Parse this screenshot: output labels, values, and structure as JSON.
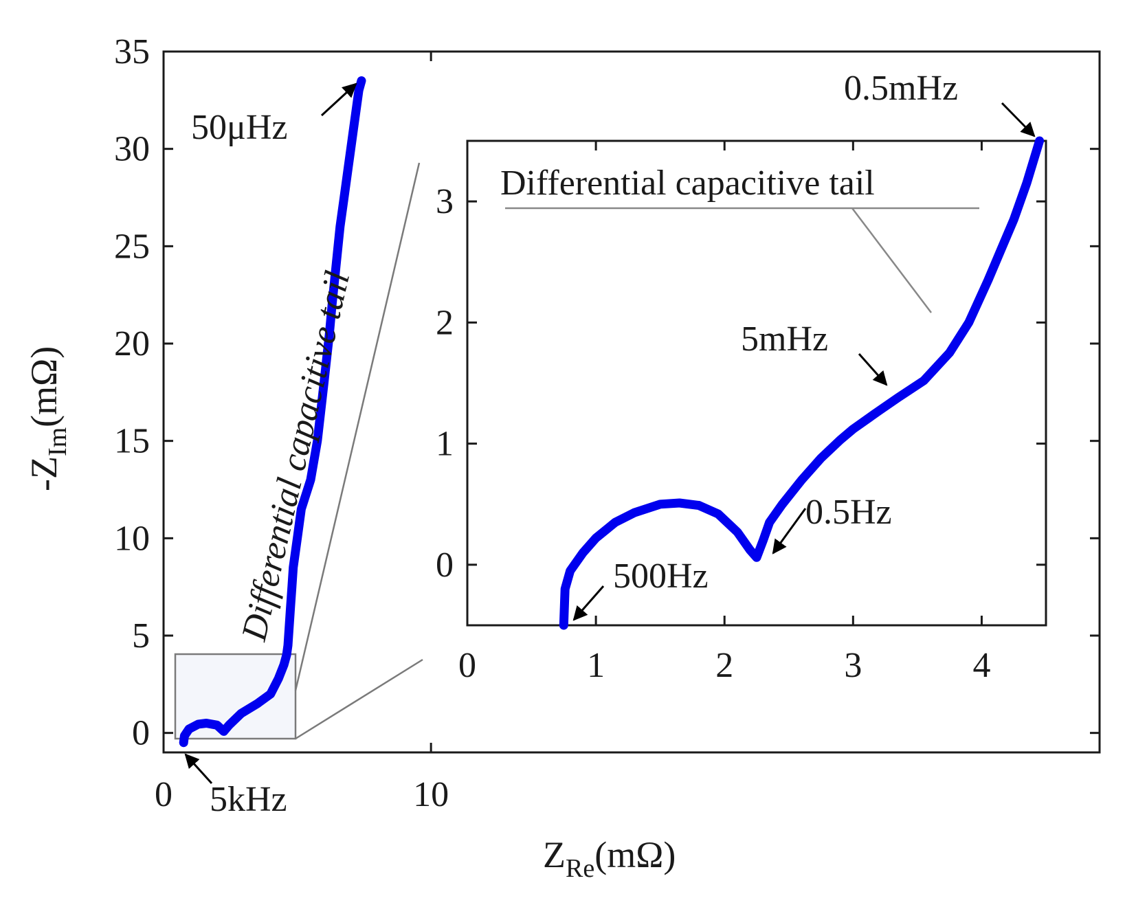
{
  "chart_data": [
    {
      "type": "line",
      "role": "main",
      "xlabel_main": "Z",
      "xlabel_sub": "Re",
      "xlabel_unit": "(mΩ)",
      "ylabel_main": "-Z",
      "ylabel_sub": "Im",
      "ylabel_unit": "(mΩ)",
      "xlim": [
        0,
        35
      ],
      "ylim": [
        -1,
        35
      ],
      "xticks": [
        0,
        10
      ],
      "yticks": [
        0,
        5,
        10,
        15,
        20,
        25,
        30,
        35
      ],
      "grid": false,
      "series": [
        {
          "name": "impedance",
          "color": "#0000ee",
          "x": [
            0.75,
            0.78,
            0.95,
            1.3,
            1.6,
            2.0,
            2.25,
            2.45,
            2.9,
            3.5,
            4.0,
            4.3,
            4.5,
            4.6,
            4.65,
            4.7,
            4.75,
            4.8,
            4.85,
            5.0,
            5.15,
            5.5,
            5.75,
            6.0,
            6.2,
            6.3,
            6.45,
            6.6,
            6.75,
            6.9,
            7.0,
            7.1,
            7.2,
            7.3,
            7.4
          ],
          "y": [
            -0.5,
            -0.15,
            0.2,
            0.45,
            0.5,
            0.4,
            0.08,
            0.4,
            1.0,
            1.5,
            2.0,
            2.8,
            3.5,
            4.0,
            4.5,
            5.5,
            6.5,
            7.5,
            8.5,
            10.0,
            11.5,
            13.0,
            15.0,
            18.0,
            20.5,
            22.0,
            24.0,
            26.0,
            27.5,
            29.0,
            30.0,
            31.0,
            32.0,
            33.0,
            33.5
          ]
        }
      ],
      "annotations": [
        {
          "text": "50μHz",
          "x": 7.4,
          "y": 33.5
        },
        {
          "text": "5kHz",
          "x": 0.75,
          "y": -0.5
        },
        {
          "text": "Differential capacitive tail",
          "orientation": "vertical"
        }
      ]
    },
    {
      "type": "line",
      "role": "inset",
      "xlim": [
        0,
        4.5
      ],
      "ylim": [
        -0.5,
        3.5
      ],
      "xticks": [
        0,
        1,
        2,
        3,
        4
      ],
      "yticks": [
        0,
        1,
        2,
        3
      ],
      "grid": false,
      "series": [
        {
          "name": "impedance-zoom",
          "color": "#0000ee",
          "x": [
            0.75,
            0.76,
            0.8,
            0.9,
            1.0,
            1.15,
            1.3,
            1.5,
            1.65,
            1.8,
            1.95,
            2.1,
            2.2,
            2.25,
            2.3,
            2.35,
            2.45,
            2.6,
            2.75,
            2.9,
            3.0,
            3.2,
            3.35,
            3.55,
            3.75,
            3.9,
            4.05,
            4.15,
            4.25,
            4.35,
            4.45
          ],
          "y": [
            -0.5,
            -0.2,
            -0.05,
            0.1,
            0.22,
            0.35,
            0.43,
            0.5,
            0.51,
            0.49,
            0.42,
            0.27,
            0.12,
            0.06,
            0.2,
            0.35,
            0.5,
            0.7,
            0.88,
            1.03,
            1.12,
            1.27,
            1.38,
            1.52,
            1.75,
            2.0,
            2.35,
            2.6,
            2.85,
            3.15,
            3.5
          ]
        }
      ],
      "annotations": [
        {
          "text": "0.5mHz",
          "x": 4.45,
          "y": 3.5
        },
        {
          "text": "Differential capacitive tail",
          "x": 2.1,
          "y": 3.2
        },
        {
          "text": "5mHz",
          "x": 3.3,
          "y": 1.5
        },
        {
          "text": "0.5Hz",
          "x": 2.25,
          "y": 0.06
        },
        {
          "text": "500Hz",
          "x": 0.78,
          "y": -0.45
        }
      ]
    }
  ]
}
